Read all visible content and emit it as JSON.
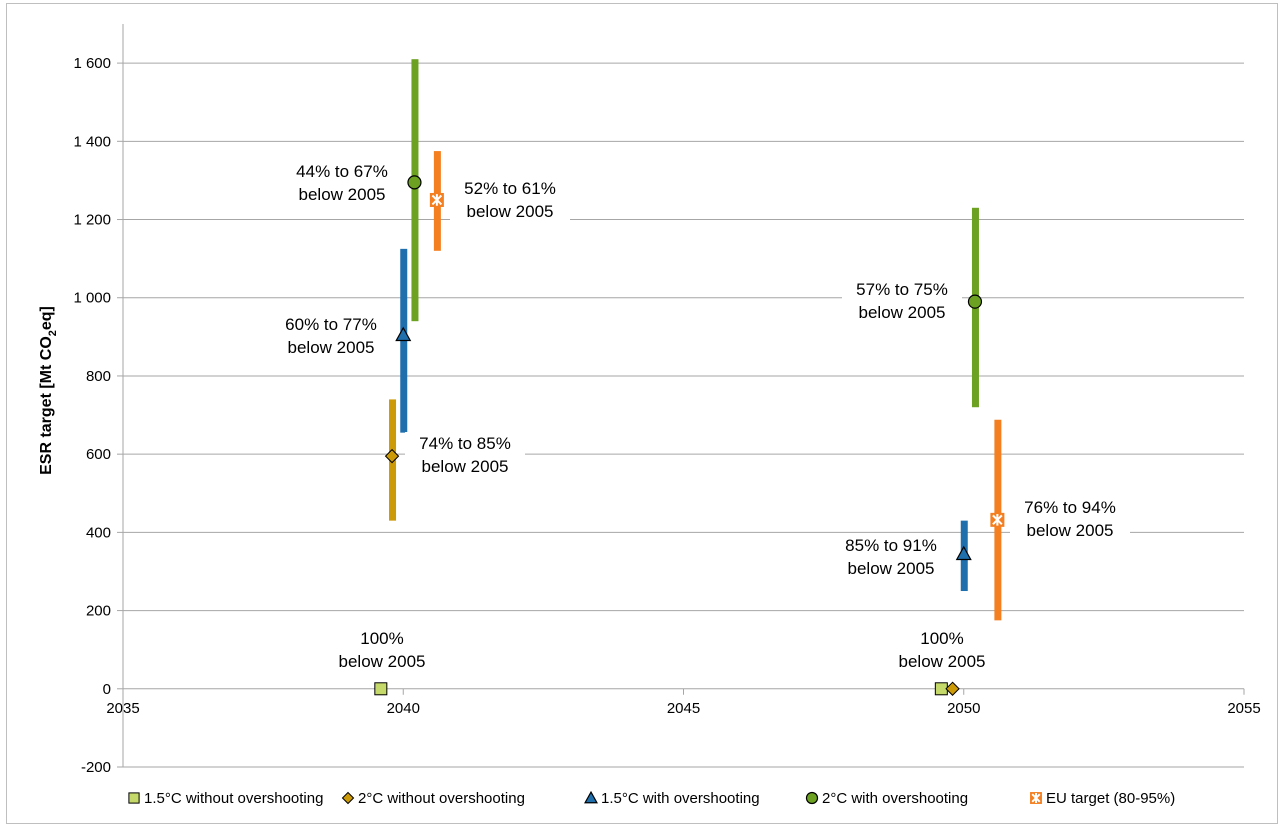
{
  "chart_data": {
    "type": "scatter",
    "title": "",
    "xlabel": "",
    "ylabel": "ESR target [Mt CO₂eq]",
    "ylabel_parts": {
      "pre": "ESR target [Mt CO",
      "sub": "2",
      "post": "eq]"
    },
    "xlim": [
      2035,
      2055
    ],
    "ylim": [
      -200,
      1700
    ],
    "x_ticks": [
      2035,
      2040,
      2045,
      2050,
      2055
    ],
    "x_tick_labels": [
      "2035",
      "2040",
      "2045",
      "2050",
      "2055"
    ],
    "y_ticks": [
      -200,
      0,
      200,
      400,
      600,
      800,
      1000,
      1200,
      1400,
      1600
    ],
    "y_tick_labels": [
      "-200",
      "0",
      "200",
      "400",
      "600",
      "800",
      "1 000",
      "1 200",
      "1 400",
      "1 600"
    ],
    "grid": "horizontal",
    "legend_position": "bottom",
    "series": [
      {
        "name": "1.5°C without overshooting",
        "color": "#c4d96a",
        "marker": "square",
        "points": [
          {
            "x": 2039.6,
            "y": 0,
            "low": null,
            "high": null
          },
          {
            "x": 2049.6,
            "y": 0,
            "low": null,
            "high": null
          }
        ]
      },
      {
        "name": "2°C without overshooting",
        "color": "#cc9a06",
        "marker": "diamond",
        "points": [
          {
            "x": 2039.8,
            "y": 595,
            "low": 430,
            "high": 740
          },
          {
            "x": 2049.8,
            "y": 0,
            "low": null,
            "high": null
          }
        ]
      },
      {
        "name": "1.5°C with overshooting",
        "color": "#1f6fad",
        "marker": "triangle",
        "points": [
          {
            "x": 2040.0,
            "y": 905,
            "low": 655,
            "high": 1125
          },
          {
            "x": 2050.0,
            "y": 345,
            "low": 250,
            "high": 430
          }
        ]
      },
      {
        "name": "2°C with overshooting",
        "color": "#6ca122",
        "marker": "circle",
        "points": [
          {
            "x": 2040.2,
            "y": 1295,
            "low": 940,
            "high": 1610
          },
          {
            "x": 2050.2,
            "y": 990,
            "low": 720,
            "high": 1230
          }
        ]
      },
      {
        "name": "EU target (80-95%)",
        "color": "#f47f20",
        "marker": "star-square",
        "points": [
          {
            "x": 2040.6,
            "y": 1250,
            "low": 1120,
            "high": 1375
          },
          {
            "x": 2050.6,
            "y": 432,
            "low": 175,
            "high": 688
          }
        ]
      }
    ],
    "annotations": [
      {
        "lines": [
          "44% to 67%",
          "below 2005"
        ]
      },
      {
        "lines": [
          "52% to 61%",
          "below 2005"
        ]
      },
      {
        "lines": [
          "60% to 77%",
          "below 2005"
        ]
      },
      {
        "lines": [
          "74% to 85%",
          "below 2005"
        ]
      },
      {
        "lines": [
          "100%",
          "below 2005"
        ]
      },
      {
        "lines": [
          "57% to 75%",
          "below 2005"
        ]
      },
      {
        "lines": [
          "85% to 91%",
          "below 2005"
        ]
      },
      {
        "lines": [
          "76% to 94%",
          "below 2005"
        ]
      },
      {
        "lines": [
          "100%",
          "below 2005"
        ]
      }
    ]
  }
}
